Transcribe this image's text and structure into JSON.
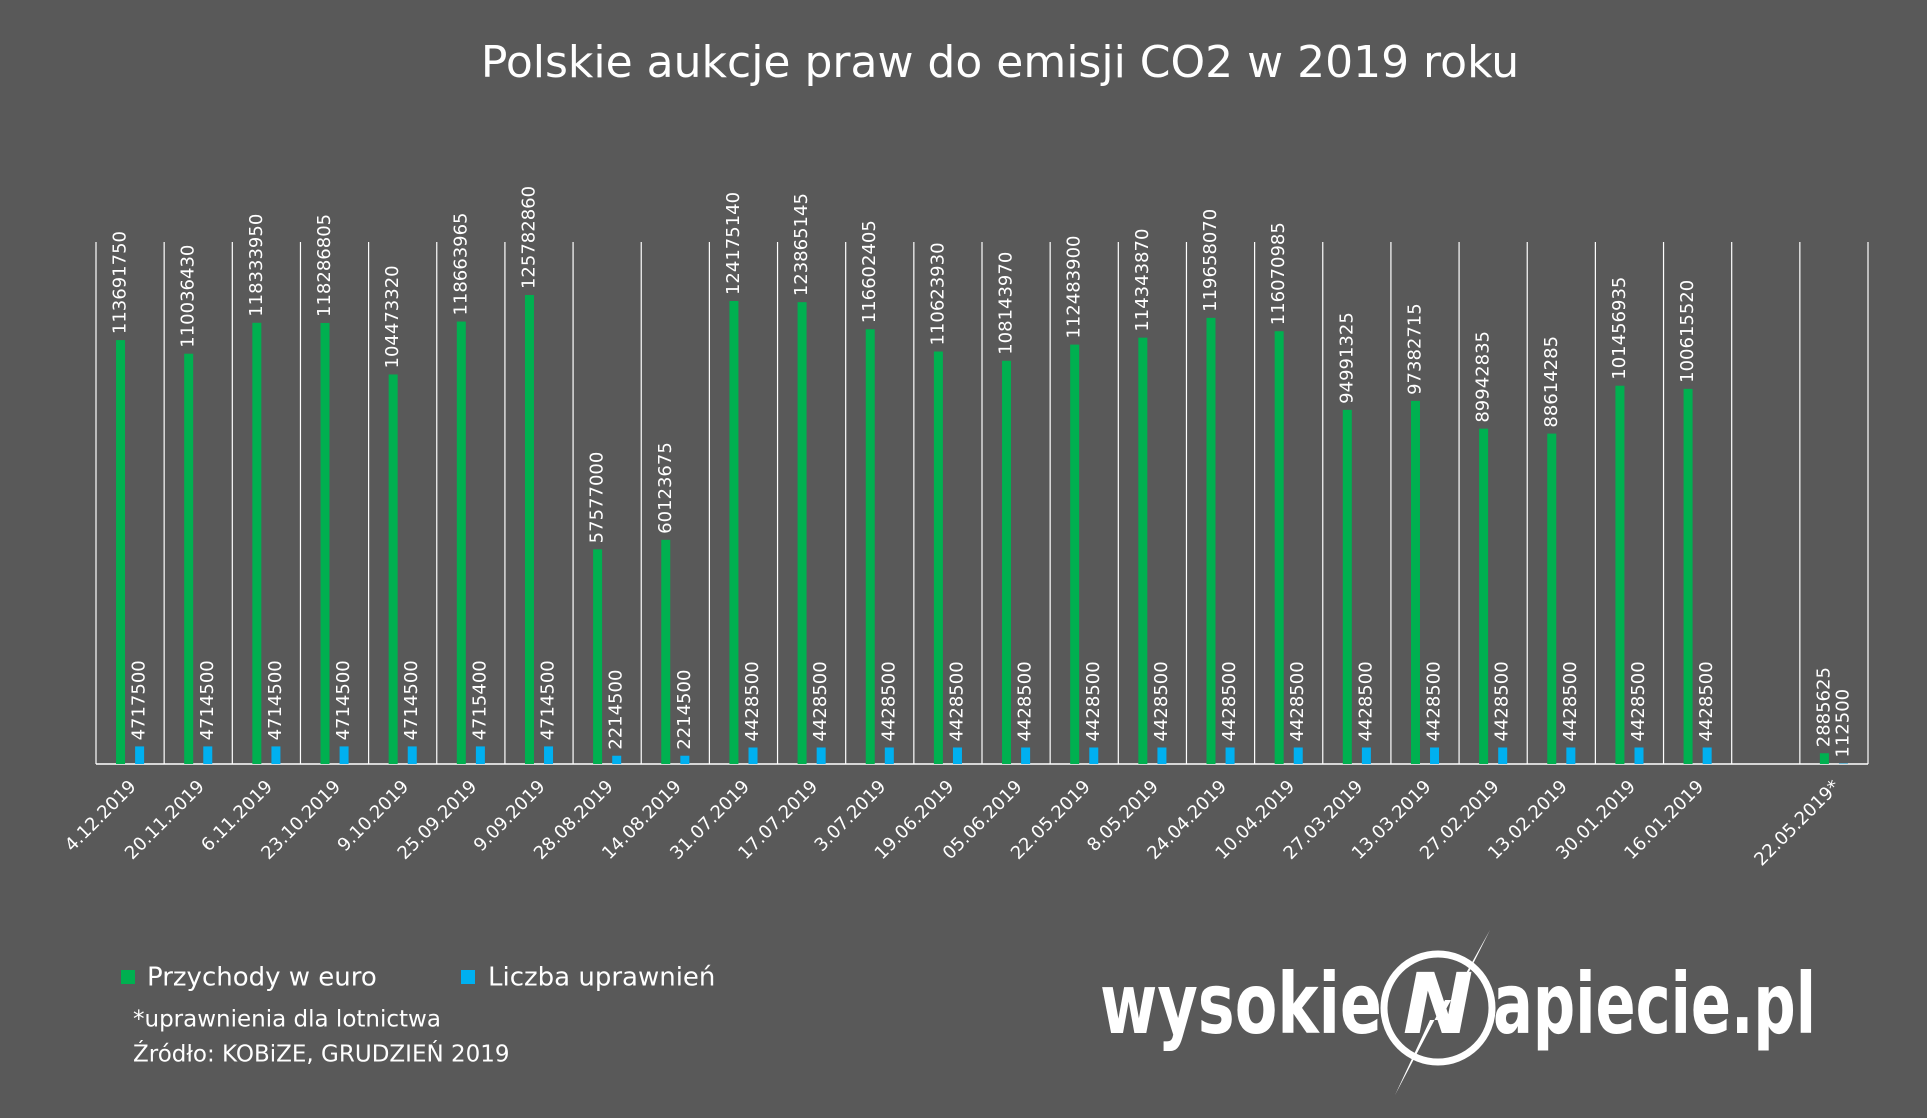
{
  "chart_data": {
    "type": "bar",
    "title": "Polskie aukcje praw do emisji CO2 w 2019 roku",
    "categories": [
      "4.12.2019",
      "20.11.2019",
      "6.11.2019",
      "23.10.2019",
      "9.10.2019",
      "25.09.2019",
      "9.09.2019",
      "28.08.2019",
      "14.08.2019",
      "31.07.2019",
      "17.07.2019",
      "3.07.2019",
      "19.06.2019",
      "05.06.2019",
      "22.05.2019",
      "8.05.2019",
      "24.04.2019",
      "10.04.2019",
      "27.03.2019",
      "13.03.2019",
      "27.02.2019",
      "13.02.2019",
      "30.01.2019",
      "16.01.2019",
      null,
      "22.05.2019*"
    ],
    "series": [
      {
        "name": "Przychody w euro",
        "color": "#00b050",
        "values": [
          113691750,
          110036430,
          118333950,
          118286805,
          104473320,
          118663965,
          125782860,
          57577000,
          60123675,
          124175140,
          123865145,
          116602405,
          110623930,
          108143970,
          112483900,
          114343870,
          119658070,
          116070985,
          94991325,
          97382715,
          89942835,
          88614285,
          101456935,
          100615520,
          null,
          2885625
        ]
      },
      {
        "name": "Liczba uprawnień",
        "color": "#00b0f0",
        "values": [
          4717500,
          4714500,
          4714500,
          4714500,
          4714500,
          4715400,
          4714500,
          2214500,
          2214500,
          4428500,
          4428500,
          4428500,
          4428500,
          4428500,
          4428500,
          4428500,
          4428500,
          4428500,
          4428500,
          4428500,
          4428500,
          4428500,
          4428500,
          4428500,
          null,
          112500
        ]
      }
    ],
    "ylim": [
      0,
      140000000
    ],
    "note": "*uprawnienia dla lotnictwa",
    "source": "Źródło: KOBiZE, GRUDZIEŃ 2019"
  },
  "logo": {
    "before": "wysokie",
    "letter": "N",
    "after": "apiecie.pl"
  }
}
